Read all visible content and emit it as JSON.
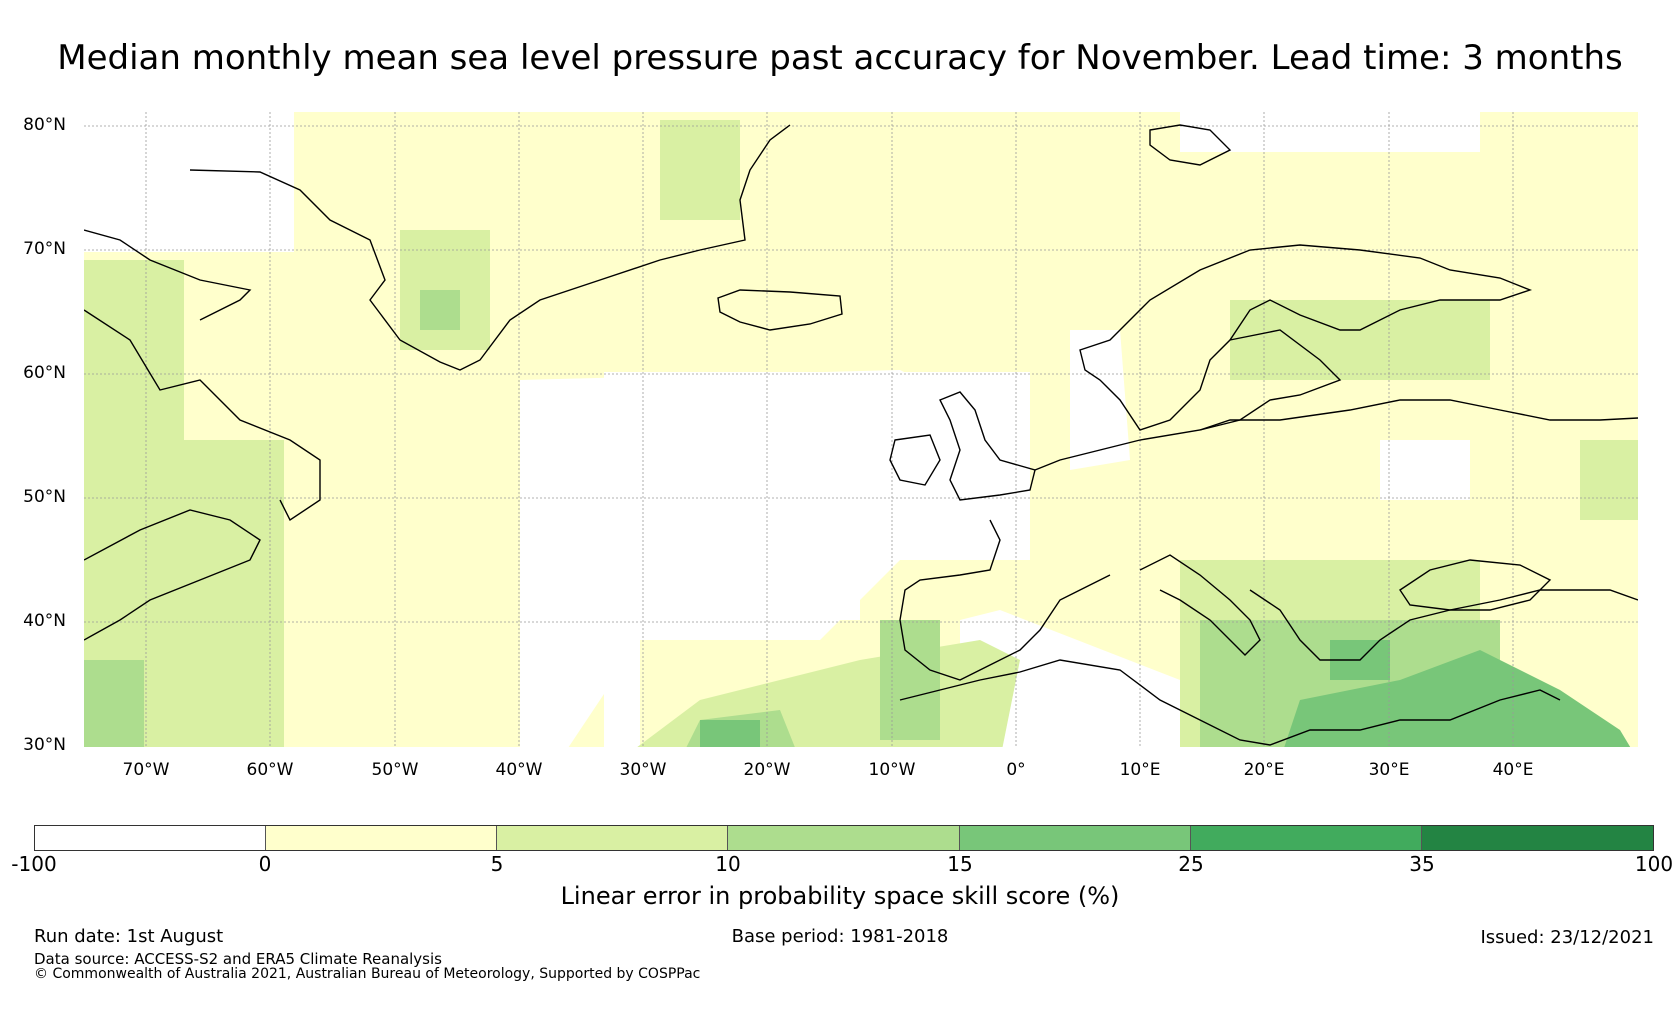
{
  "title": "Median monthly mean sea level pressure past accuracy for November. Lead time: 3 months",
  "map": {
    "lon_range": [
      -75,
      50
    ],
    "lat_range": [
      30,
      81
    ],
    "lat_labels": [
      "30°N",
      "40°N",
      "50°N",
      "60°N",
      "70°N",
      "80°N"
    ],
    "lat_values": [
      30,
      40,
      50,
      60,
      70,
      80
    ],
    "lon_labels": [
      "70°W",
      "60°W",
      "50°W",
      "40°W",
      "30°W",
      "20°W",
      "10°W",
      "0°",
      "10°E",
      "20°E",
      "30°E",
      "40°E"
    ],
    "lon_values": [
      -70,
      -60,
      -50,
      -40,
      -30,
      -20,
      -10,
      0,
      10,
      20,
      30,
      40
    ],
    "grid": true
  },
  "colorbar": {
    "ticks": [
      "-100",
      "0",
      "5",
      "10",
      "15",
      "25",
      "35",
      "100"
    ],
    "colors": [
      "#ffffff",
      "#ffffcc",
      "#d9f0a3",
      "#addd8e",
      "#78c679",
      "#41ab5d",
      "#238443"
    ],
    "label": "Linear error in probability space skill score (%)"
  },
  "footer": {
    "run_date": "Run date: 1st August",
    "base_period": "Base period: 1981-2018",
    "issued": "Issued: 23/12/2021",
    "data_source": "Data source: ACCESS-S2 and ERA5 Climate Reanalysis",
    "copyright": "© Commonwealth of Australia 2021, Australian Bureau of Meteorology, Supported by COSPPac"
  }
}
